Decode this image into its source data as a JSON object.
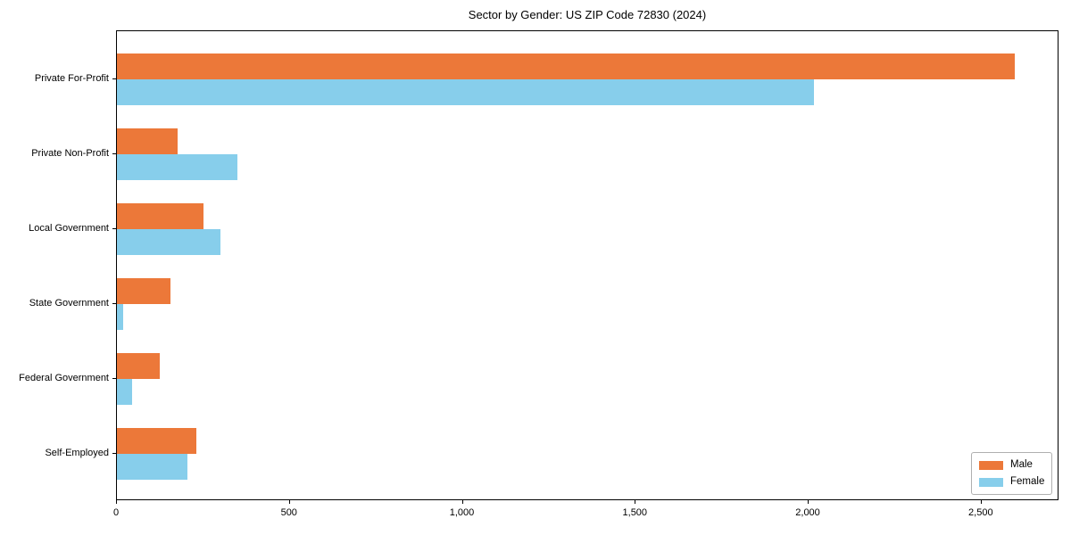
{
  "chart_data": {
    "type": "bar",
    "orientation": "horizontal",
    "title": "Sector by Gender: US ZIP Code 72830 (2024)",
    "categories": [
      "Private For-Profit",
      "Private Non-Profit",
      "Local Government",
      "State Government",
      "Federal Government",
      "Self-Employed"
    ],
    "series": [
      {
        "name": "Male",
        "color": "#EC7839",
        "values": [
          2600,
          175,
          250,
          155,
          125,
          230
        ]
      },
      {
        "name": "Female",
        "color": "#87CEEB",
        "values": [
          2020,
          350,
          300,
          18,
          45,
          205
        ]
      }
    ],
    "xlabel": "",
    "ylabel": "",
    "xlim": [
      0,
      2725
    ],
    "xticks": [
      0,
      500,
      1000,
      1500,
      2000,
      2500
    ],
    "xtick_labels": [
      "0",
      "500",
      "1,000",
      "1,500",
      "2,000",
      "2,500"
    ],
    "grid": false,
    "background": "#ffffff",
    "legend": {
      "position": "lower right",
      "entries": [
        "Male",
        "Female"
      ]
    }
  }
}
